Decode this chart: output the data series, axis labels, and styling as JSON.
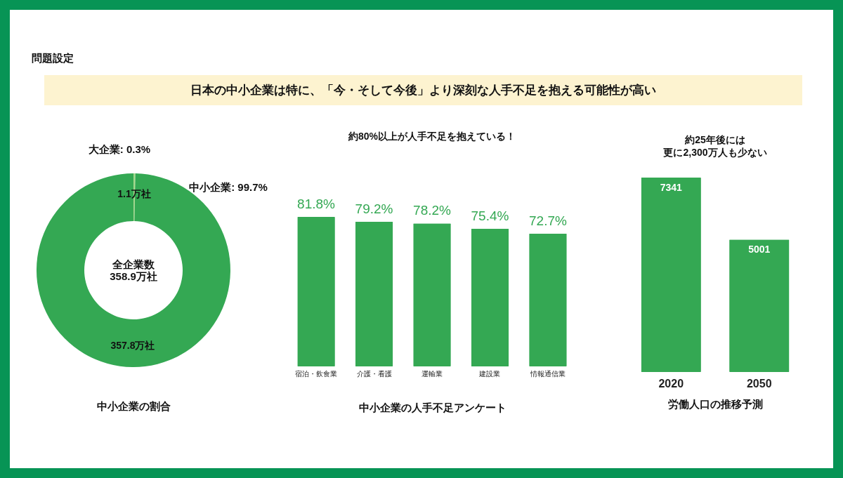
{
  "chart_data": [
    {
      "type": "other",
      "title": "問題設定",
      "subtitle": "日本の中小企業は特に、「今・そして今後」より深刻な人手不足を抱える可能性が高い"
    },
    {
      "type": "donut",
      "xlabel": "中小企業の割合",
      "categories": [
        "大企業",
        "中小企業"
      ],
      "values": [
        1.1,
        357.8
      ],
      "value_labels": [
        "1.1万社",
        "357.8万社"
      ],
      "colors": [
        "#a5d88c",
        "#34a853"
      ],
      "annotations": [
        ": 0.3%",
        ": 99.7%",
        "全企業数",
        "358.9万社"
      ]
    },
    {
      "type": "bar",
      "title": "約80%以上が人手不足を抱えている！",
      "xlabel": "中小企業の人手不足アンケート",
      "categories": [
        "宿泊・飲食業",
        "介護・看護",
        "運輸業",
        "建設業",
        "情報通信業"
      ],
      "series": [
        {
          "color": "#34a853",
          "values": [
            81.8,
            79.2,
            78.2,
            75.4,
            72.7
          ],
          "value_labels": [
            "81.8%",
            "79.2%",
            "78.2%",
            "75.4%",
            "72.7%"
          ]
        }
      ]
    },
    {
      "type": "bar",
      "title": "約25年後には",
      "subtitle": "更に2,300万人も少ない",
      "xlabel": "労働人口の推移予測",
      "categories": [
        "2020",
        "2050"
      ],
      "data_labels": true,
      "series": [
        {
          "color": "#34a853",
          "values": [
            7341,
            5001
          ]
        }
      ]
    }
  ]
}
